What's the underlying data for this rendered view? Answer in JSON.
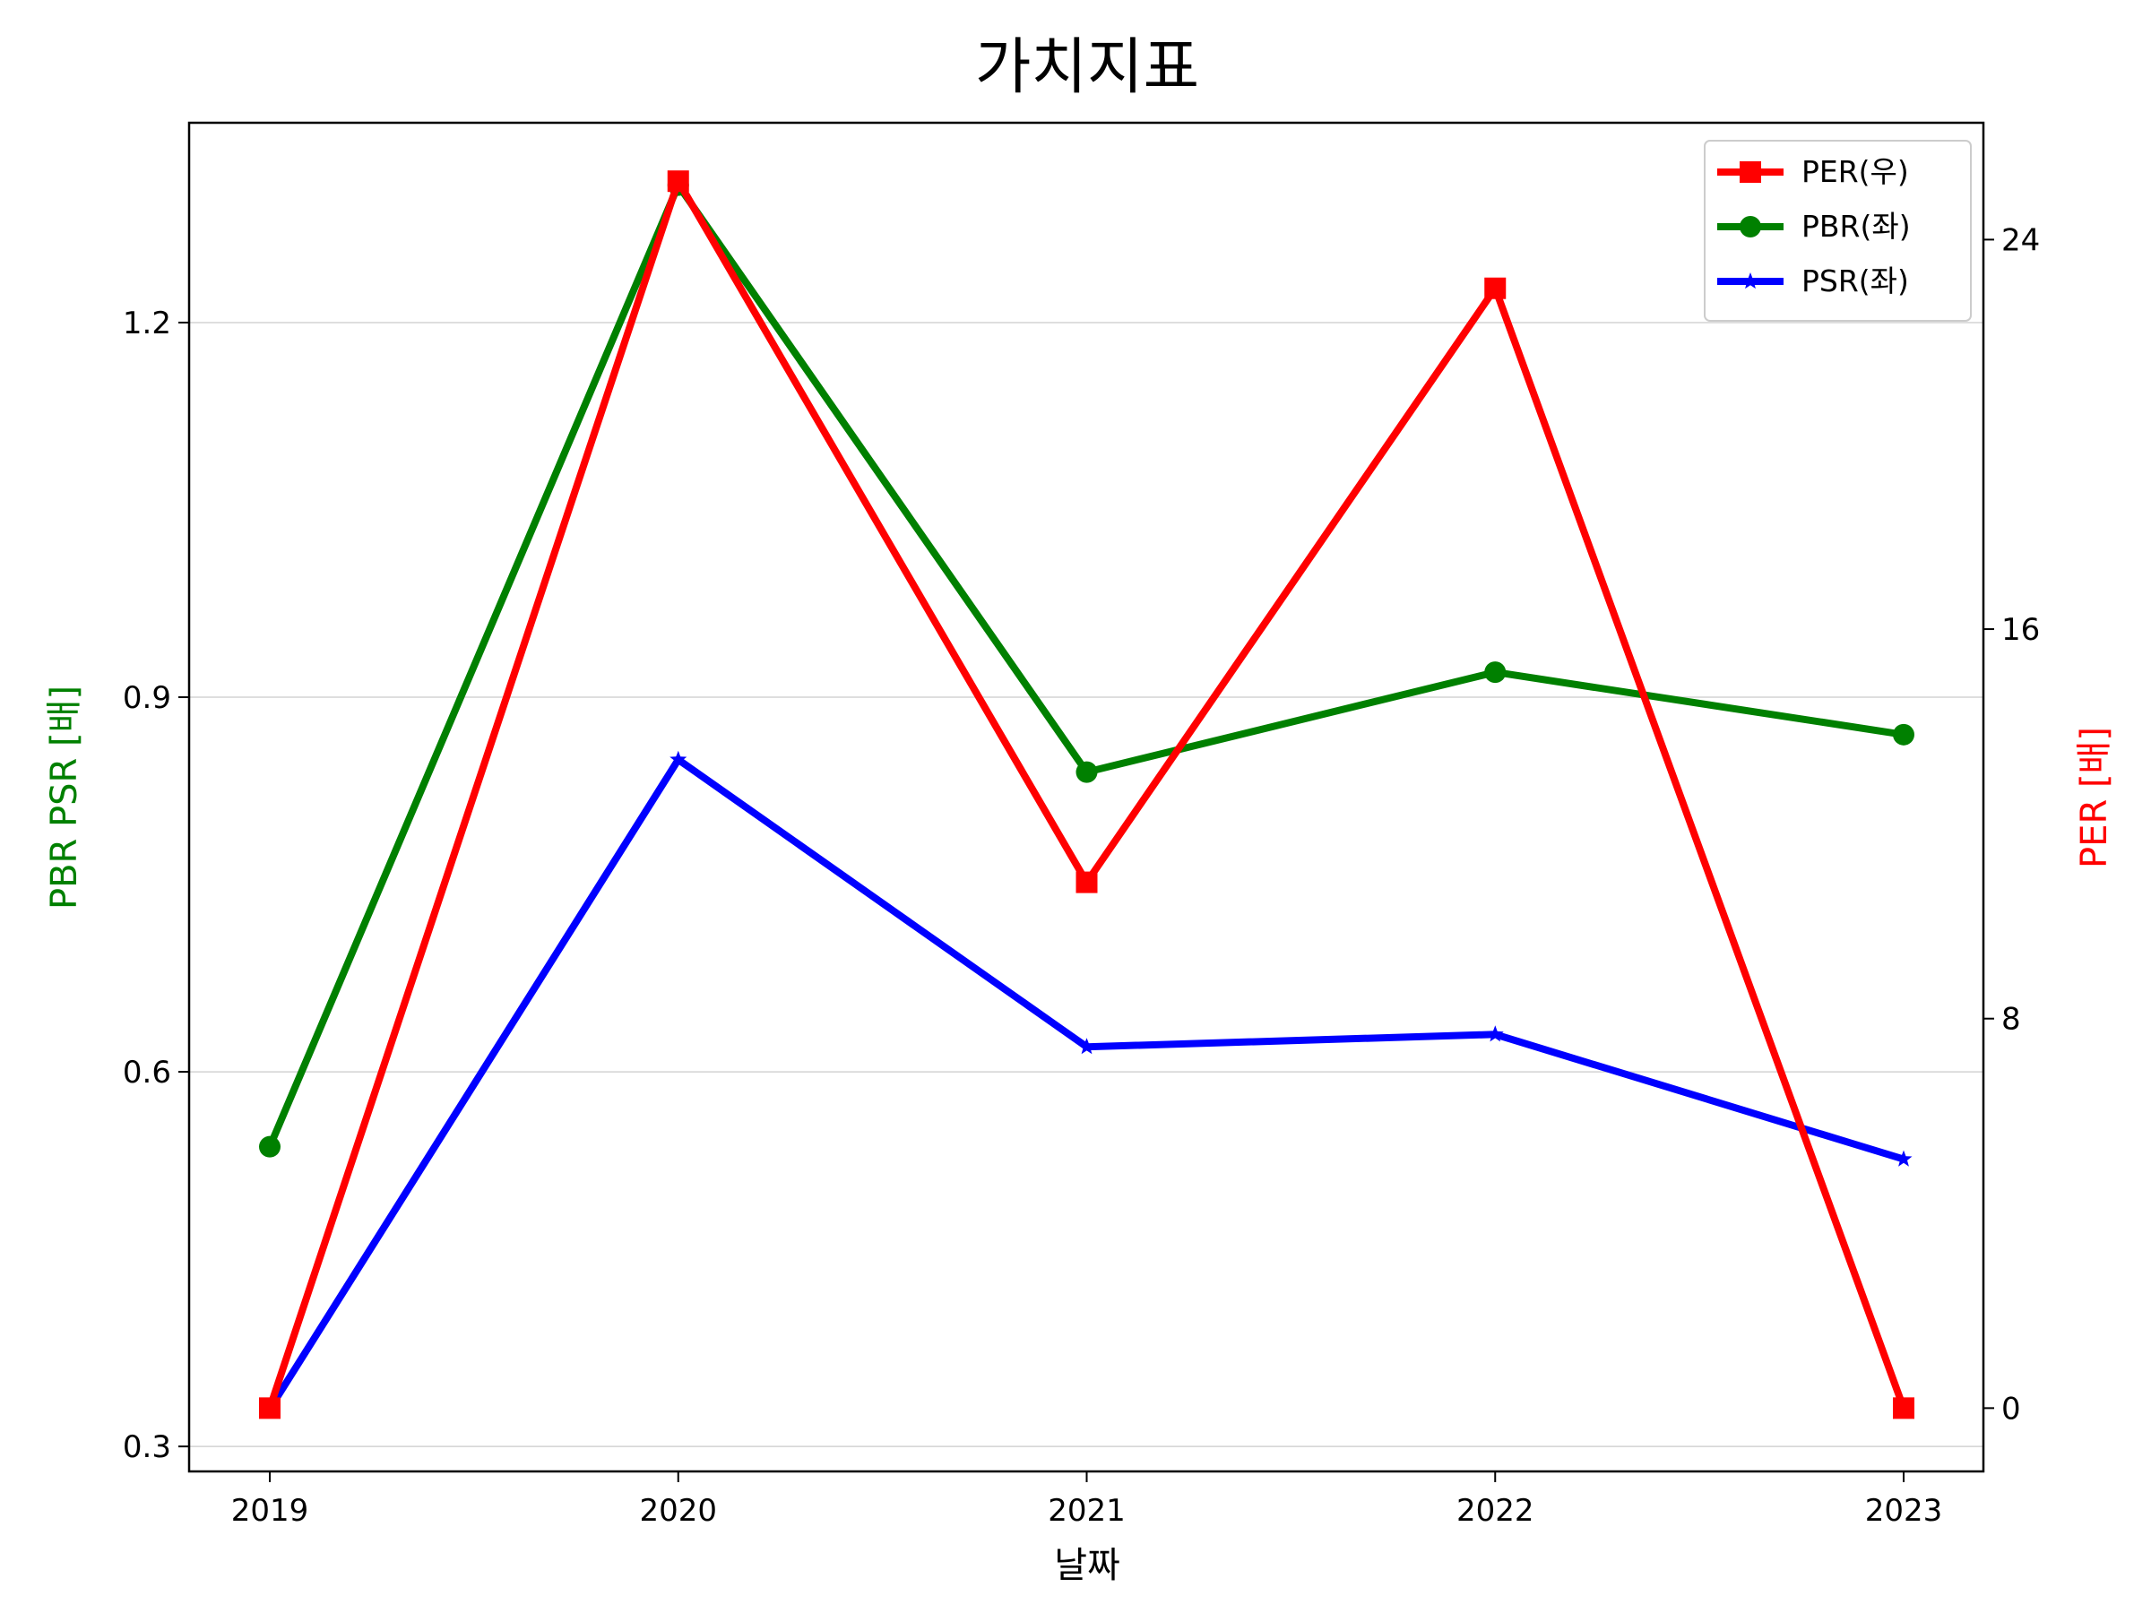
{
  "chart_data": {
    "type": "line",
    "title": "가치지표",
    "xlabel": "날짜",
    "ylabel_left": "PBR PSR [배]",
    "ylabel_right": "PER [배]",
    "categories": [
      "2019",
      "2020",
      "2021",
      "2022",
      "2023"
    ],
    "yticks_left": [
      "0.3",
      "0.6",
      "0.9",
      "1.2"
    ],
    "yticks_right": [
      "0",
      "8",
      "16",
      "24"
    ],
    "ylim_left": [
      0.28,
      1.36
    ],
    "ylim_right": [
      -1.3,
      26.4
    ],
    "grid": "horizontal",
    "legend_position": "top-right",
    "series": [
      {
        "name": "PER(우)",
        "axis": "right",
        "color": "#ff0000",
        "marker": "square",
        "values": [
          0.0,
          25.2,
          10.8,
          23.0,
          0.0
        ]
      },
      {
        "name": "PBR(좌)",
        "axis": "left",
        "color": "#008000",
        "marker": "circle",
        "values": [
          0.54,
          1.31,
          0.84,
          0.92,
          0.87
        ]
      },
      {
        "name": "PSR(좌)",
        "axis": "left",
        "color": "#0000ff",
        "marker": "star",
        "values": [
          0.33,
          0.85,
          0.62,
          0.63,
          0.53
        ]
      }
    ],
    "colors": {
      "left_axis_label": "#008000",
      "right_axis_label": "#ff0000",
      "grid": "#d3d3d3"
    }
  }
}
